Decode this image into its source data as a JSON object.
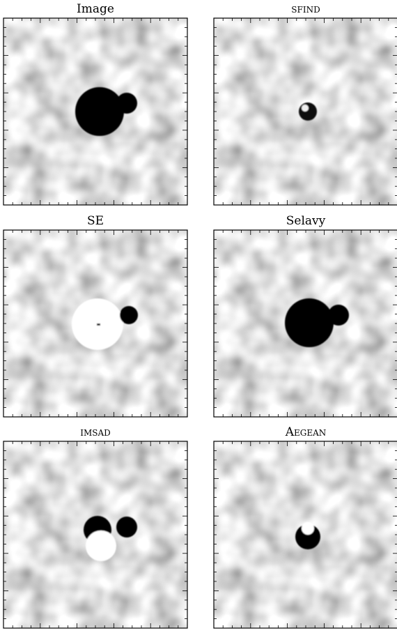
{
  "panels": [
    {
      "title": "Image"
    },
    {
      "title": "sfind"
    },
    {
      "title": "SE"
    },
    {
      "title": "Selavy"
    },
    {
      "title": "imsad"
    },
    {
      "title": "Aegean"
    }
  ]
}
